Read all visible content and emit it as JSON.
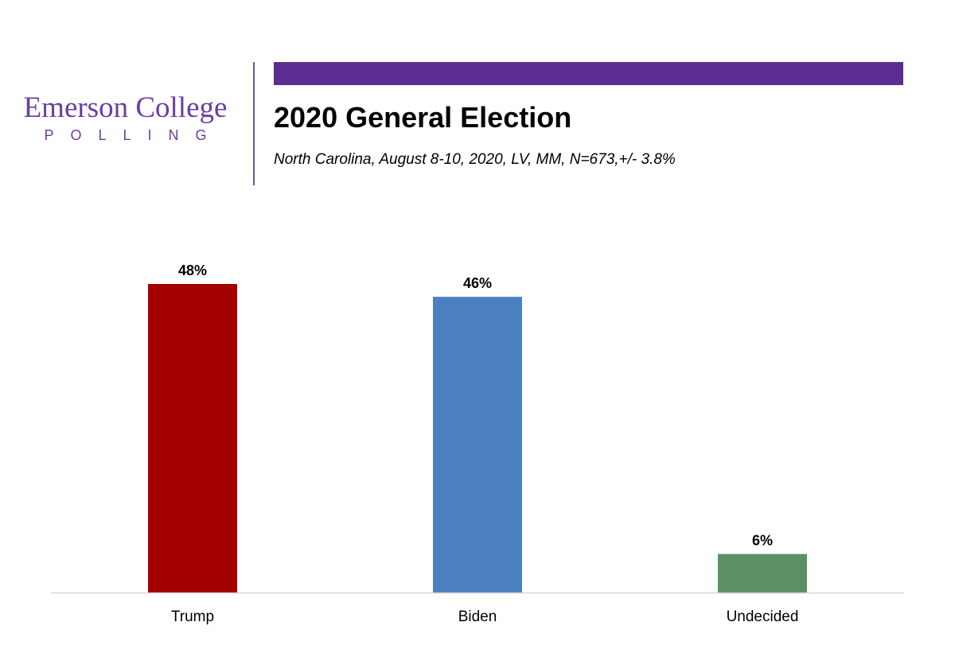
{
  "logo": {
    "name": "Emerson College",
    "sub": "POLLING",
    "color": "#6a3ea1"
  },
  "header": {
    "accent_color": "#5c2d91",
    "title": "2020 General Election",
    "subtitle": "North Carolina, August 8-10, 2020, LV, MM,  N=673,+/- 3.8%"
  },
  "chart_data": {
    "type": "bar",
    "categories": [
      "Trump",
      "Biden",
      "Undecided"
    ],
    "values": [
      48,
      46,
      6
    ],
    "value_suffix": "%",
    "colors": [
      "#a50000",
      "#4a7fc0",
      "#5a9064"
    ],
    "ylim": [
      0,
      48
    ],
    "grid": false,
    "legend": "none"
  }
}
